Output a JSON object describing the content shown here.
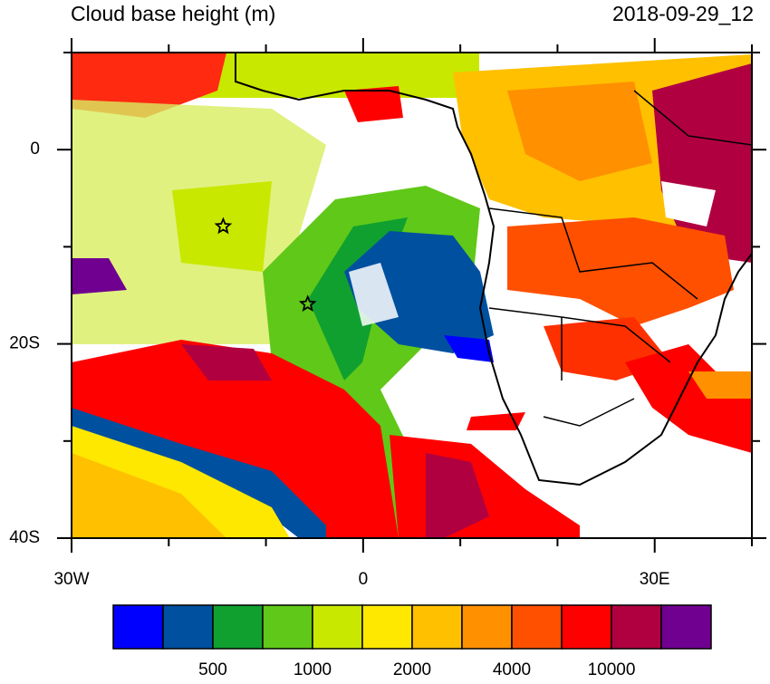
{
  "title": "Cloud base height (m)",
  "date": "2018-09-29_12",
  "lon_range": [
    -30,
    40
  ],
  "lat_range": [
    -40,
    10
  ],
  "lon_ticks": [
    {
      "value": -30,
      "label": "30W"
    },
    {
      "value": 0,
      "label": "0"
    },
    {
      "value": 30,
      "label": "30E"
    }
  ],
  "lat_ticks": [
    {
      "value": 0,
      "label": "0"
    },
    {
      "value": -20,
      "label": "20S"
    },
    {
      "value": -40,
      "label": "40S"
    }
  ],
  "lon_minor_ticks": [
    -20,
    -10,
    10,
    20,
    40
  ],
  "lat_minor_ticks": [
    -10,
    -30,
    10
  ],
  "markers": [
    {
      "lon": -14.4,
      "lat": -7.9
    },
    {
      "lon": -5.7,
      "lat": -15.9
    }
  ],
  "colorbar": {
    "colors": [
      "#0000ff",
      "#0050a0",
      "#10a030",
      "#60c818",
      "#c8e800",
      "#ffe800",
      "#ffc000",
      "#ff9000",
      "#ff5000",
      "#ff0000",
      "#b00040",
      "#700090"
    ],
    "labels": [
      500,
      1000,
      2000,
      4000,
      10000
    ]
  }
}
